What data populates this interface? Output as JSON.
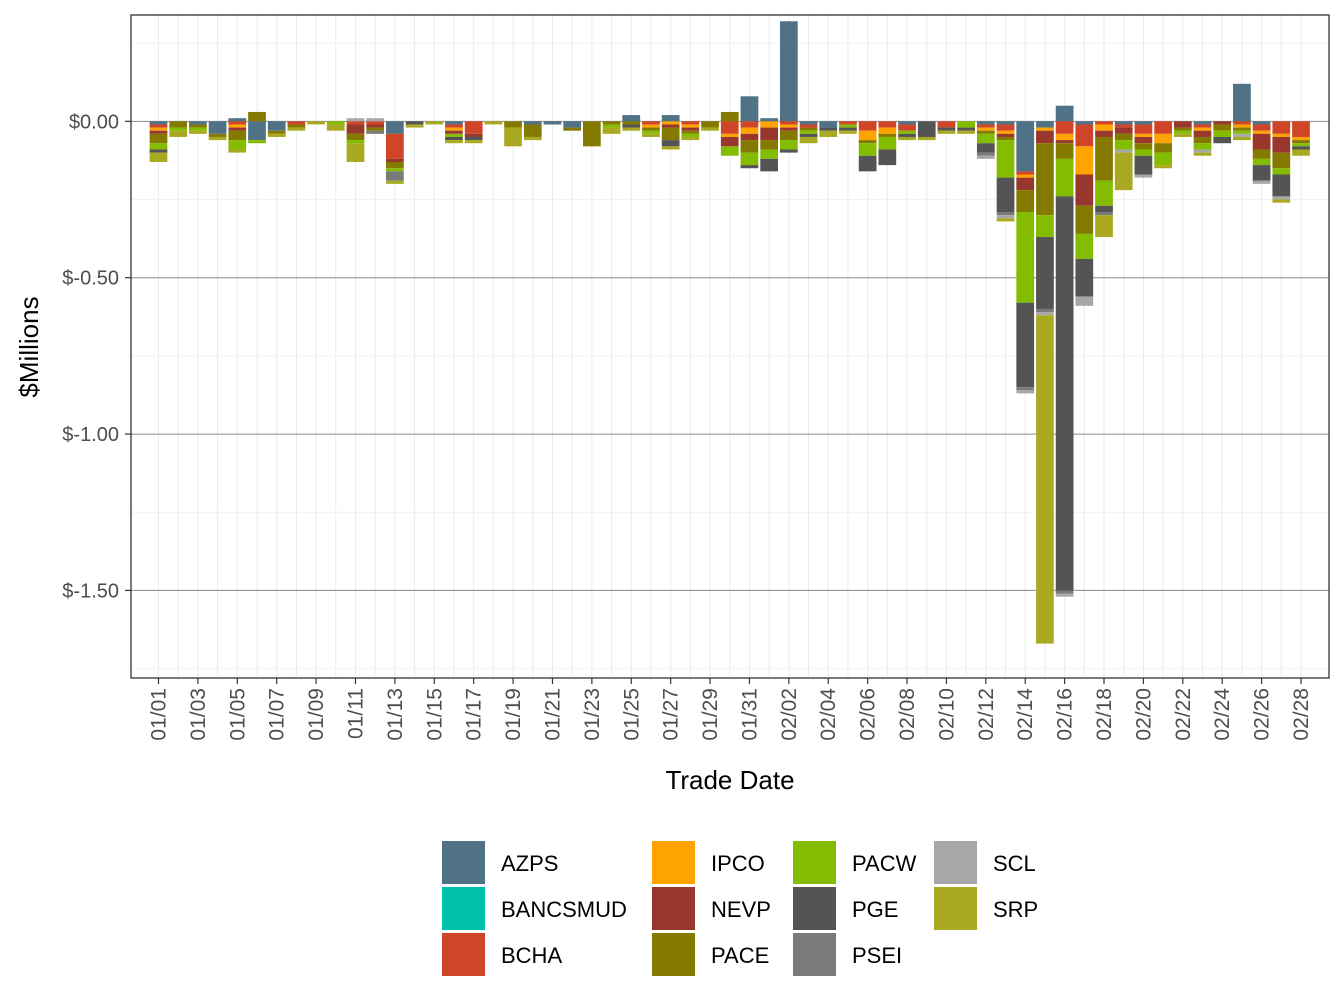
{
  "chart_data": {
    "type": "bar",
    "stacked": true,
    "xlabel": "Trade Date",
    "ylabel": "$Millions",
    "ylim": [
      -1.78,
      0.34
    ],
    "yticks": [
      0.0,
      -0.5,
      -1.0,
      -1.5
    ],
    "ytick_labels": [
      "$0.00",
      "$-0.50",
      "$-1.00",
      "$-1.50"
    ],
    "grid": true,
    "legend_position": "bottom",
    "categories": [
      "01/01",
      "01/02",
      "01/03",
      "01/04",
      "01/05",
      "01/06",
      "01/07",
      "01/08",
      "01/09",
      "01/10",
      "01/11",
      "01/12",
      "01/13",
      "01/14",
      "01/15",
      "01/16",
      "01/17",
      "01/18",
      "01/19",
      "01/20",
      "01/21",
      "01/22",
      "01/23",
      "01/24",
      "01/25",
      "01/26",
      "01/27",
      "01/28",
      "01/29",
      "01/30",
      "01/31",
      "02/01",
      "02/02",
      "02/03",
      "02/04",
      "02/05",
      "02/06",
      "02/07",
      "02/08",
      "02/09",
      "02/10",
      "02/11",
      "02/12",
      "02/13",
      "02/14",
      "02/15",
      "02/16",
      "02/17",
      "02/18",
      "02/19",
      "02/20",
      "02/21",
      "02/22",
      "02/23",
      "02/24",
      "02/25",
      "02/26",
      "02/27",
      "02/28"
    ],
    "x_tick_labels": [
      "01/01",
      "01/03",
      "01/05",
      "01/07",
      "01/09",
      "01/11",
      "01/13",
      "01/15",
      "01/17",
      "01/19",
      "01/21",
      "01/23",
      "01/25",
      "01/27",
      "01/29",
      "01/31",
      "02/02",
      "02/04",
      "02/06",
      "02/08",
      "02/10",
      "02/12",
      "02/14",
      "02/16",
      "02/18",
      "02/20",
      "02/22",
      "02/24",
      "02/26",
      "02/28"
    ],
    "series": [
      {
        "name": "AZPS",
        "color": "#4F7286",
        "values": [
          -0.01,
          0,
          -0.01,
          -0.04,
          0.01,
          -0.06,
          -0.03,
          0,
          0,
          0,
          0,
          0,
          -0.04,
          0,
          0,
          -0.01,
          0,
          0,
          0,
          -0.01,
          -0.01,
          -0.02,
          0,
          0,
          0.02,
          0,
          0.02,
          0,
          0,
          0,
          0.08,
          0.01,
          0.32,
          -0.01,
          -0.02,
          0,
          0,
          0,
          -0.01,
          0,
          0,
          0,
          -0.01,
          -0.01,
          -0.16,
          -0.02,
          0.05,
          -0.01,
          0,
          -0.01,
          -0.01,
          0,
          0,
          -0.01,
          0,
          0.12,
          -0.01,
          0,
          0
        ]
      },
      {
        "name": "BANCSMUD",
        "color": "#00C2A8",
        "values": [
          0,
          0,
          0,
          0,
          0,
          0,
          0,
          0,
          0,
          0,
          0,
          0,
          0,
          0,
          0,
          0,
          0,
          0,
          0,
          0,
          0,
          0,
          0,
          0,
          0,
          0,
          0,
          0,
          0,
          0,
          0,
          0,
          0,
          0,
          0,
          0,
          0,
          0,
          0,
          0,
          0,
          0,
          0,
          0,
          0,
          0,
          0,
          0,
          0,
          0,
          0,
          0,
          0,
          0,
          0,
          0,
          0,
          0,
          0
        ]
      },
      {
        "name": "BCHA",
        "color": "#D04527",
        "values": [
          -0.01,
          0,
          0,
          0,
          -0.01,
          0,
          0,
          -0.01,
          0,
          0,
          -0.01,
          -0.01,
          -0.08,
          0,
          0,
          -0.01,
          -0.04,
          0,
          0,
          0,
          0,
          0,
          0,
          0,
          0,
          -0.01,
          0,
          -0.01,
          0,
          -0.04,
          -0.02,
          0,
          -0.01,
          -0.01,
          0,
          -0.01,
          -0.03,
          -0.02,
          -0.02,
          0,
          -0.02,
          0,
          -0.01,
          -0.02,
          -0.01,
          0,
          -0.04,
          -0.07,
          -0.01,
          -0.01,
          -0.03,
          -0.04,
          0,
          -0.01,
          0,
          -0.01,
          -0.02,
          -0.04,
          -0.05
        ]
      },
      {
        "name": "IPCO",
        "color": "#FFA300",
        "values": [
          -0.01,
          0,
          0,
          0,
          -0.01,
          0,
          0,
          0,
          0,
          0,
          0,
          0,
          0,
          0,
          0,
          -0.01,
          0,
          0,
          0,
          0,
          0,
          0,
          0,
          0,
          0,
          -0.01,
          -0.01,
          -0.01,
          0,
          -0.01,
          -0.02,
          -0.02,
          -0.01,
          0,
          0,
          0,
          -0.03,
          -0.02,
          0,
          0,
          0,
          0,
          -0.01,
          -0.01,
          -0.01,
          -0.01,
          -0.02,
          -0.09,
          -0.02,
          0,
          -0.01,
          -0.03,
          0,
          -0.01,
          0,
          -0.01,
          -0.01,
          -0.01,
          -0.01
        ]
      },
      {
        "name": "NEVP",
        "color": "#98372C",
        "values": [
          -0.01,
          0,
          0,
          0,
          -0.01,
          0,
          0,
          0,
          0,
          0,
          -0.03,
          -0.01,
          -0.01,
          0,
          0,
          -0.01,
          -0.01,
          0,
          0,
          0,
          0,
          0,
          0,
          0,
          0,
          0,
          -0.01,
          -0.01,
          0,
          -0.03,
          -0.02,
          -0.04,
          -0.01,
          0,
          0,
          0,
          0,
          0,
          0,
          0,
          0,
          0,
          0,
          -0.01,
          -0.04,
          -0.04,
          -0.01,
          -0.1,
          -0.02,
          -0.02,
          -0.02,
          0,
          -0.02,
          -0.02,
          -0.01,
          0,
          -0.05,
          -0.05,
          0
        ]
      },
      {
        "name": "PACE",
        "color": "#857A00",
        "values": [
          -0.03,
          -0.02,
          -0.01,
          -0.01,
          -0.03,
          0.03,
          -0.01,
          -0.01,
          0,
          0,
          -0.02,
          -0.01,
          -0.02,
          0,
          0,
          0,
          0,
          0,
          -0.02,
          -0.04,
          0,
          -0.01,
          -0.08,
          -0.01,
          -0.01,
          -0.01,
          -0.04,
          -0.01,
          -0.02,
          0.03,
          -0.04,
          -0.03,
          -0.03,
          -0.01,
          0,
          0,
          -0.01,
          -0.01,
          0,
          0,
          0,
          0,
          -0.01,
          -0.01,
          -0.07,
          -0.23,
          -0.05,
          -0.09,
          -0.14,
          -0.02,
          -0.02,
          -0.03,
          -0.01,
          -0.02,
          -0.02,
          -0.01,
          -0.03,
          -0.05,
          -0.01
        ]
      },
      {
        "name": "PACW",
        "color": "#84BD00",
        "values": [
          -0.02,
          -0.01,
          -0.01,
          0,
          -0.03,
          -0.01,
          0,
          0,
          0,
          -0.01,
          -0.01,
          0,
          -0.01,
          0,
          0,
          -0.01,
          0,
          0,
          0,
          0,
          0,
          0,
          0,
          -0.01,
          0,
          -0.01,
          0,
          -0.01,
          0,
          -0.03,
          -0.04,
          -0.03,
          -0.03,
          -0.01,
          0,
          -0.01,
          -0.04,
          -0.04,
          -0.01,
          0,
          0,
          -0.02,
          -0.03,
          -0.12,
          -0.29,
          -0.07,
          -0.12,
          -0.08,
          -0.08,
          -0.03,
          -0.02,
          -0.04,
          -0.01,
          -0.02,
          -0.02,
          -0.01,
          -0.02,
          -0.02,
          -0.01
        ]
      },
      {
        "name": "PGE",
        "color": "#545454",
        "values": [
          -0.01,
          0,
          0,
          0,
          0,
          0,
          0,
          0,
          0,
          0,
          0,
          0,
          0,
          -0.01,
          0,
          -0.01,
          -0.01,
          0,
          0,
          0,
          0,
          0,
          0,
          0,
          -0.01,
          0,
          -0.02,
          0,
          0,
          0,
          -0.01,
          -0.04,
          -0.01,
          -0.01,
          -0.01,
          -0.01,
          -0.05,
          -0.05,
          -0.01,
          -0.05,
          -0.01,
          -0.01,
          -0.03,
          -0.11,
          -0.27,
          -0.23,
          -1.26,
          -0.12,
          -0.02,
          0,
          -0.06,
          0,
          0,
          0,
          -0.02,
          0,
          -0.05,
          -0.07,
          -0.01
        ]
      },
      {
        "name": "PSEI",
        "color": "#7A7A7A",
        "values": [
          0,
          0,
          0,
          0,
          0,
          0,
          0,
          0,
          0,
          0,
          0,
          -0.01,
          -0.03,
          0,
          0,
          0,
          0,
          0,
          0,
          0,
          0,
          0,
          0,
          0,
          0,
          0,
          0,
          0,
          0,
          0,
          0,
          0,
          0,
          0,
          0,
          0,
          0,
          0,
          0,
          0,
          0,
          0,
          -0.01,
          -0.01,
          -0.01,
          -0.01,
          -0.01,
          0,
          -0.01,
          0,
          0,
          0,
          0,
          0,
          0,
          0,
          0,
          0,
          0
        ]
      },
      {
        "name": "SCL",
        "color": "#A8A8A8",
        "values": [
          0,
          0,
          0,
          0,
          0,
          0,
          0,
          0,
          0,
          0,
          0.01,
          0.01,
          0,
          0,
          0,
          0,
          0,
          0,
          0,
          0,
          0,
          0,
          0,
          0,
          0,
          0,
          0,
          0,
          0,
          0,
          0,
          0,
          0,
          0,
          0,
          0,
          0,
          0,
          0,
          0,
          0,
          0,
          -0.01,
          -0.01,
          -0.01,
          -0.01,
          -0.01,
          -0.03,
          0,
          -0.01,
          -0.01,
          0,
          0,
          -0.01,
          0,
          -0.01,
          -0.01,
          -0.01,
          0
        ]
      },
      {
        "name": "SRP",
        "color": "#AAAA22",
        "values": [
          -0.03,
          -0.02,
          -0.01,
          -0.01,
          -0.01,
          0,
          -0.01,
          -0.01,
          -0.01,
          -0.02,
          -0.06,
          0,
          -0.01,
          -0.01,
          -0.01,
          -0.01,
          -0.01,
          -0.01,
          -0.06,
          -0.01,
          0,
          0,
          0,
          -0.02,
          -0.01,
          -0.01,
          -0.01,
          -0.01,
          -0.01,
          0,
          0,
          0,
          0,
          -0.02,
          -0.02,
          -0.01,
          0,
          0,
          -0.01,
          -0.01,
          -0.01,
          -0.01,
          0,
          -0.01,
          0,
          -1.05,
          0,
          0,
          -0.07,
          -0.12,
          0,
          -0.01,
          -0.01,
          -0.01,
          0,
          -0.01,
          0,
          -0.01,
          -0.02
        ]
      }
    ]
  }
}
